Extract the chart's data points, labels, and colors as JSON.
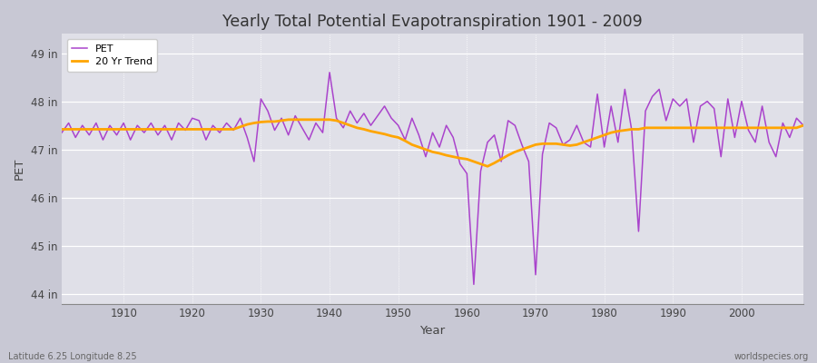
{
  "title": "Yearly Total Potential Evapotranspiration 1901 - 2009",
  "xlabel": "Year",
  "ylabel": "PET",
  "subtitle_lat_lon": "Latitude 6.25 Longitude 8.25",
  "watermark": "worldspecies.org",
  "pet_color": "#AA44CC",
  "trend_color": "#FFA500",
  "background_color": "#E0E0E8",
  "fig_color": "#C8C8D4",
  "ylim": [
    43.8,
    49.4
  ],
  "yticks": [
    44,
    45,
    46,
    47,
    48,
    49
  ],
  "ytick_labels": [
    "44 in",
    "45 in",
    "46 in",
    "47 in",
    "48 in",
    "49 in"
  ],
  "years": [
    1901,
    1902,
    1903,
    1904,
    1905,
    1906,
    1907,
    1908,
    1909,
    1910,
    1911,
    1912,
    1913,
    1914,
    1915,
    1916,
    1917,
    1918,
    1919,
    1920,
    1921,
    1922,
    1923,
    1924,
    1925,
    1926,
    1927,
    1928,
    1929,
    1930,
    1931,
    1932,
    1933,
    1934,
    1935,
    1936,
    1937,
    1938,
    1939,
    1940,
    1941,
    1942,
    1943,
    1944,
    1945,
    1946,
    1947,
    1948,
    1949,
    1950,
    1951,
    1952,
    1953,
    1954,
    1955,
    1956,
    1957,
    1958,
    1959,
    1960,
    1961,
    1962,
    1963,
    1964,
    1965,
    1966,
    1967,
    1968,
    1969,
    1970,
    1971,
    1972,
    1973,
    1974,
    1975,
    1976,
    1977,
    1978,
    1979,
    1980,
    1981,
    1982,
    1983,
    1984,
    1985,
    1986,
    1987,
    1988,
    1989,
    1990,
    1991,
    1992,
    1993,
    1994,
    1995,
    1996,
    1997,
    1998,
    1999,
    2000,
    2001,
    2002,
    2003,
    2004,
    2005,
    2006,
    2007,
    2008,
    2009
  ],
  "pet_values": [
    47.35,
    47.55,
    47.25,
    47.5,
    47.3,
    47.55,
    47.2,
    47.5,
    47.3,
    47.55,
    47.2,
    47.5,
    47.35,
    47.55,
    47.3,
    47.5,
    47.2,
    47.55,
    47.4,
    47.65,
    47.6,
    47.2,
    47.5,
    47.35,
    47.55,
    47.4,
    47.65,
    47.25,
    46.75,
    48.05,
    47.8,
    47.4,
    47.65,
    47.3,
    47.7,
    47.45,
    47.2,
    47.55,
    47.35,
    48.6,
    47.65,
    47.45,
    47.8,
    47.55,
    47.75,
    47.5,
    47.7,
    47.9,
    47.65,
    47.5,
    47.2,
    47.65,
    47.3,
    46.85,
    47.35,
    47.05,
    47.5,
    47.25,
    46.7,
    46.5,
    44.2,
    46.55,
    47.15,
    47.3,
    46.75,
    47.6,
    47.5,
    47.1,
    46.75,
    44.4,
    46.9,
    47.55,
    47.45,
    47.1,
    47.2,
    47.5,
    47.15,
    47.05,
    48.15,
    47.05,
    47.9,
    47.15,
    48.25,
    47.4,
    45.3,
    47.8,
    48.1,
    48.25,
    47.6,
    48.05,
    47.9,
    48.05,
    47.15,
    47.9,
    48.0,
    47.85,
    46.85,
    48.05,
    47.25,
    48.0,
    47.4,
    47.15,
    47.9,
    47.15,
    46.85,
    47.55,
    47.25,
    47.65,
    47.5
  ],
  "trend_values": [
    47.42,
    47.42,
    47.42,
    47.42,
    47.42,
    47.42,
    47.42,
    47.42,
    47.42,
    47.42,
    47.42,
    47.42,
    47.42,
    47.42,
    47.42,
    47.42,
    47.42,
    47.42,
    47.42,
    47.42,
    47.42,
    47.42,
    47.42,
    47.42,
    47.42,
    47.42,
    47.47,
    47.52,
    47.55,
    47.57,
    47.58,
    47.58,
    47.6,
    47.62,
    47.62,
    47.62,
    47.62,
    47.62,
    47.62,
    47.62,
    47.6,
    47.55,
    47.5,
    47.45,
    47.42,
    47.38,
    47.35,
    47.32,
    47.28,
    47.25,
    47.18,
    47.1,
    47.05,
    47.0,
    46.95,
    46.92,
    46.88,
    46.85,
    46.82,
    46.8,
    46.75,
    46.7,
    46.65,
    46.72,
    46.8,
    46.88,
    46.95,
    47.0,
    47.05,
    47.1,
    47.12,
    47.12,
    47.12,
    47.1,
    47.08,
    47.1,
    47.15,
    47.2,
    47.25,
    47.3,
    47.35,
    47.38,
    47.4,
    47.42,
    47.42,
    47.45,
    47.45,
    47.45,
    47.45,
    47.45,
    47.45,
    47.45,
    47.45,
    47.45,
    47.45,
    47.45,
    47.45,
    47.45,
    47.45,
    47.45,
    47.45,
    47.45,
    47.45,
    47.45,
    47.45,
    47.45,
    47.45,
    47.45,
    47.5
  ]
}
